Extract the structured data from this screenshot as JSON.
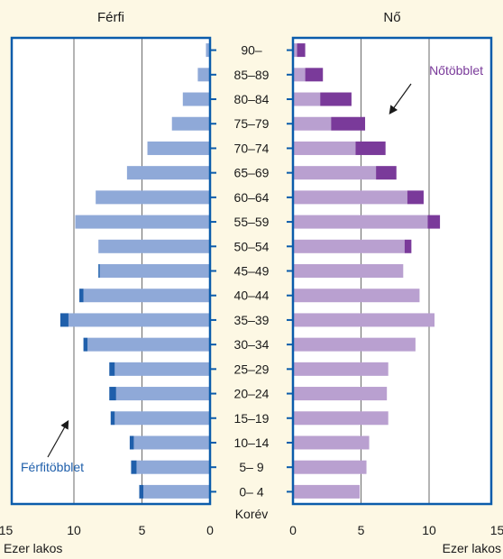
{
  "chart_data": {
    "type": "bar",
    "subtype": "population-pyramid",
    "left_title": "Férfi",
    "right_title": "Nő",
    "center_axis_label": "Korév",
    "left_unit_label": "Ezer lakos",
    "right_unit_label": "Ezer lakos",
    "x_ticks": [
      15,
      10,
      5,
      0
    ],
    "xlim": [
      0,
      15
    ],
    "grid": true,
    "categories": [
      "90–",
      "85–89",
      "80–84",
      "75–79",
      "70–74",
      "65–69",
      "60–64",
      "55–59",
      "50–54",
      "45–49",
      "40–44",
      "35–39",
      "30–34",
      "25–29",
      "20–24",
      "15–19",
      "10–14",
      "5– 9",
      "0– 4"
    ],
    "male_base": [
      0.3,
      0.9,
      2.0,
      2.8,
      4.6,
      6.1,
      8.4,
      9.9,
      8.2,
      8.1,
      9.3,
      10.4,
      9.0,
      7.0,
      6.9,
      7.0,
      5.6,
      5.4,
      4.9
    ],
    "male_excess": [
      0,
      0,
      0,
      0,
      0,
      0,
      0,
      0,
      0,
      0.1,
      0.3,
      0.6,
      0.3,
      0.4,
      0.5,
      0.3,
      0.3,
      0.4,
      0.3
    ],
    "female_base": [
      0.3,
      0.9,
      2.0,
      2.8,
      4.6,
      6.1,
      8.4,
      9.9,
      8.2,
      8.1,
      9.3,
      10.4,
      9.0,
      7.0,
      6.9,
      7.0,
      5.6,
      5.4,
      4.9
    ],
    "female_excess": [
      0.6,
      1.3,
      2.3,
      2.5,
      2.2,
      1.5,
      1.2,
      0.9,
      0.5,
      0,
      0,
      0,
      0,
      0,
      0,
      0,
      0,
      0,
      0
    ],
    "annotations": {
      "male_excess_label": "Férfitöbblet",
      "female_excess_label": "Nőtöbblet"
    },
    "colors": {
      "background": "#fdf8e4",
      "panel": "#ffffff",
      "frame": "#0b5cab",
      "male_base": "#8fa9d8",
      "male_excess": "#1f5fab",
      "female_base": "#b9a0d0",
      "female_excess": "#7a3a9a",
      "male_label": "#1f5fab",
      "female_label": "#7a3a9a"
    }
  }
}
